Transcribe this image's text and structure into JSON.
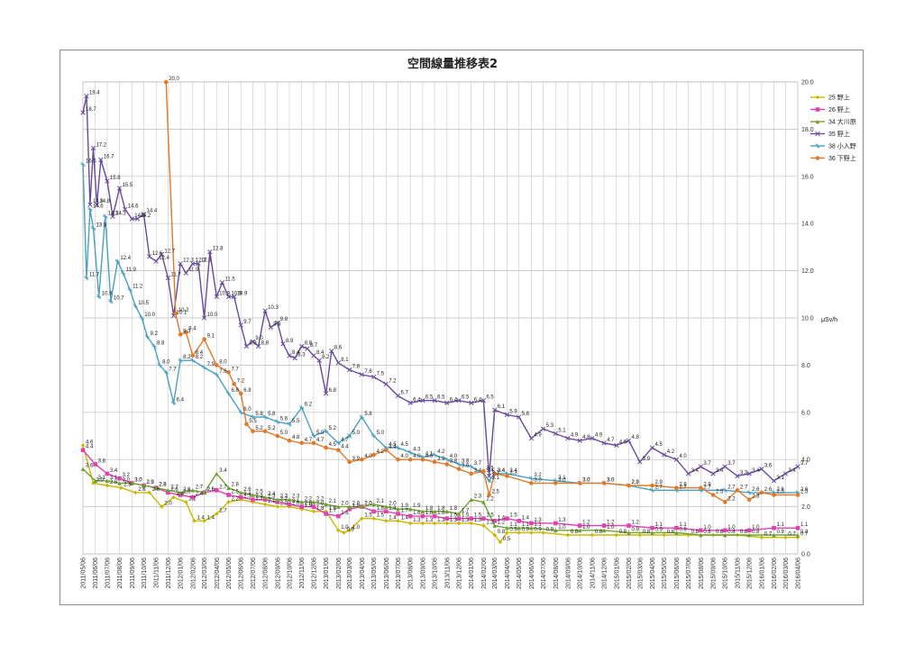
{
  "chart_data": {
    "type": "line",
    "title": "空間線量推移表2",
    "ylabel": "μSv/h",
    "ylim": [
      0,
      20
    ],
    "yticks": [
      "0.0",
      "2.0",
      "4.0",
      "6.0",
      "8.0",
      "10.0",
      "12.0",
      "14.0",
      "16.0",
      "18.0",
      "20.0"
    ],
    "grid": true,
    "legend_position": "right",
    "x_start": "2011-05-06",
    "x_end": "2016-04-06",
    "x_ticks": [
      "2011/05/06",
      "2011/06/06",
      "2011/07/06",
      "2011/08/06",
      "2011/09/06",
      "2011/10/06",
      "2011/11/06",
      "2011/12/06",
      "2012/01/06",
      "2012/02/06",
      "2012/03/06",
      "2012/04/06",
      "2012/05/06",
      "2012/06/06",
      "2012/07/06",
      "2012/08/06",
      "2012/09/06",
      "2012/10/06",
      "2012/11/06",
      "2012/12/06",
      "2013/01/06",
      "2013/02/06",
      "2013/03/06",
      "2013/04/06",
      "2013/05/06",
      "2013/06/06",
      "2013/07/06",
      "2013/08/06",
      "2013/09/06",
      "2013/10/06",
      "2013/11/06",
      "2013/12/06",
      "2014/01/06",
      "2014/02/06",
      "2014/03/06",
      "2014/04/06",
      "2014/05/06",
      "2014/06/06",
      "2014/07/06",
      "2014/08/06",
      "2014/09/06",
      "2014/10/06",
      "2014/11/06",
      "2014/12/06",
      "2015/01/06",
      "2015/02/06",
      "2015/03/06",
      "2015/04/06",
      "2015/05/06",
      "2015/06/06",
      "2015/07/06",
      "2015/08/06",
      "2015/09/06",
      "2015/10/06",
      "2015/11/06",
      "2015/12/06",
      "2016/01/06",
      "2016/02/06",
      "2016/03/06",
      "2016/04/06"
    ],
    "series": [
      {
        "name": "25 野上",
        "color": "#c9b800",
        "marker": "diamond",
        "x": [
          "2011-05-06",
          "2011-06-01",
          "2011-07-06",
          "2011-08-10",
          "2011-09-15",
          "2011-10-20",
          "2011-11-20",
          "2011-12-20",
          "2012-01-20",
          "2012-02-10",
          "2012-03-06",
          "2012-04-06",
          "2012-05-06",
          "2012-06-06",
          "2012-07-06",
          "2012-08-06",
          "2012-09-06",
          "2012-10-06",
          "2012-11-06",
          "2012-12-06",
          "2013-01-06",
          "2013-02-06",
          "2013-02-20",
          "2013-03-06",
          "2013-04-06",
          "2013-05-06",
          "2013-06-06",
          "2013-07-06",
          "2013-08-06",
          "2013-09-06",
          "2013-10-06",
          "2013-11-06",
          "2013-12-06",
          "2014-01-06",
          "2014-02-06",
          "2014-03-06",
          "2014-03-20",
          "2014-04-06",
          "2014-05-06",
          "2014-06-06",
          "2014-07-06",
          "2014-09-06",
          "2014-11-06",
          "2015-01-06",
          "2015-03-06",
          "2015-05-06",
          "2015-07-06",
          "2015-09-06",
          "2015-11-06",
          "2016-01-06",
          "2016-03-06",
          "2016-04-06"
        ],
        "values": [
          4.6,
          3.0,
          2.9,
          2.8,
          2.6,
          2.6,
          2.0,
          2.4,
          2.2,
          1.4,
          1.4,
          1.7,
          2.2,
          2.3,
          2.2,
          2.1,
          2.0,
          2.0,
          1.9,
          1.8,
          1.8,
          1.0,
          0.9,
          1.0,
          1.5,
          1.5,
          1.4,
          1.4,
          1.3,
          1.3,
          1.3,
          1.3,
          1.3,
          1.3,
          1.2,
          0.8,
          0.5,
          0.9,
          0.9,
          0.9,
          0.9,
          0.8,
          0.8,
          0.8,
          0.8,
          0.8,
          0.8,
          0.8,
          0.8,
          0.7,
          0.7,
          0.7
        ]
      },
      {
        "name": "26 野上",
        "color": "#e040b0",
        "marker": "square",
        "x": [
          "2011-05-06",
          "2011-06-06",
          "2011-07-06",
          "2011-08-06",
          "2011-09-06",
          "2011-10-06",
          "2011-11-06",
          "2011-12-06",
          "2012-01-06",
          "2012-02-06",
          "2012-03-06",
          "2012-04-06",
          "2012-05-06",
          "2012-06-06",
          "2012-07-06",
          "2012-08-06",
          "2012-09-06",
          "2012-10-06",
          "2012-11-06",
          "2012-12-06",
          "2013-01-06",
          "2013-02-06",
          "2013-03-06",
          "2013-04-06",
          "2013-05-06",
          "2013-06-06",
          "2013-07-06",
          "2013-08-06",
          "2013-09-06",
          "2013-10-06",
          "2013-11-06",
          "2013-12-06",
          "2014-01-06",
          "2014-02-06",
          "2014-03-06",
          "2014-04-06",
          "2014-05-06",
          "2014-06-06",
          "2014-08-06",
          "2014-10-06",
          "2014-12-06",
          "2015-02-06",
          "2015-04-06",
          "2015-06-06",
          "2015-08-06",
          "2015-10-06",
          "2015-12-06",
          "2016-02-06",
          "2016-04-06"
        ],
        "values": [
          4.4,
          3.8,
          3.4,
          3.2,
          3.0,
          2.9,
          2.8,
          2.6,
          2.5,
          2.4,
          2.6,
          2.7,
          2.5,
          2.4,
          2.3,
          2.3,
          2.2,
          2.1,
          2.0,
          2.0,
          1.7,
          1.6,
          1.9,
          2.0,
          1.8,
          1.8,
          1.7,
          1.6,
          1.6,
          1.6,
          1.5,
          1.5,
          1.5,
          1.5,
          1.4,
          1.5,
          1.4,
          1.3,
          1.3,
          1.2,
          1.2,
          1.2,
          1.1,
          1.1,
          1.0,
          1.0,
          1.0,
          1.1,
          1.1
        ]
      },
      {
        "name": "34 大川原",
        "color": "#70a030",
        "marker": "triangle",
        "x": [
          "2011-05-06",
          "2011-06-06",
          "2011-07-06",
          "2011-08-06",
          "2011-09-06",
          "2011-10-06",
          "2011-11-06",
          "2011-12-06",
          "2012-01-06",
          "2012-02-06",
          "2012-03-06",
          "2012-04-06",
          "2012-05-06",
          "2012-06-06",
          "2012-07-06",
          "2012-08-06",
          "2012-09-06",
          "2012-10-06",
          "2012-11-06",
          "2012-12-06",
          "2013-01-06",
          "2013-02-06",
          "2013-03-06",
          "2013-04-06",
          "2013-05-06",
          "2013-06-06",
          "2013-07-06",
          "2013-08-06",
          "2013-09-06",
          "2013-10-06",
          "2013-11-06",
          "2013-12-06",
          "2014-01-06",
          "2014-02-06",
          "2014-03-06",
          "2014-04-06",
          "2014-05-06",
          "2014-06-06",
          "2014-08-06",
          "2014-10-06",
          "2014-12-06",
          "2015-02-06",
          "2015-04-06",
          "2015-06-06",
          "2015-08-06",
          "2015-10-06",
          "2015-12-06",
          "2016-02-06",
          "2016-04-06"
        ],
        "values": [
          3.6,
          3.1,
          3.1,
          3.0,
          3.0,
          2.9,
          2.8,
          2.7,
          2.6,
          2.7,
          2.6,
          3.4,
          2.8,
          2.6,
          2.5,
          2.4,
          2.3,
          2.3,
          2.2,
          2.2,
          2.1,
          2.0,
          2.0,
          2.0,
          2.1,
          2.0,
          1.9,
          1.9,
          1.8,
          1.8,
          1.8,
          1.7,
          2.3,
          2.2,
          1.2,
          1.1,
          1.1,
          1.1,
          1.0,
          1.0,
          1.0,
          0.9,
          0.9,
          0.9,
          0.8,
          0.8,
          0.8,
          0.8,
          0.8
        ]
      },
      {
        "name": "35 野上",
        "color": "#6a4a9a",
        "marker": "cross",
        "x": [
          "2011-05-06",
          "2011-05-15",
          "2011-05-24",
          "2011-06-01",
          "2011-06-10",
          "2011-06-20",
          "2011-07-06",
          "2011-07-20",
          "2011-08-06",
          "2011-08-20",
          "2011-09-06",
          "2011-09-20",
          "2011-10-06",
          "2011-10-20",
          "2011-11-06",
          "2011-11-20",
          "2011-12-06",
          "2011-12-20",
          "2012-01-06",
          "2012-01-20",
          "2012-02-06",
          "2012-02-20",
          "2012-03-06",
          "2012-03-20",
          "2012-04-06",
          "2012-04-20",
          "2012-05-06",
          "2012-05-20",
          "2012-06-06",
          "2012-06-20",
          "2012-07-06",
          "2012-07-20",
          "2012-08-06",
          "2012-08-20",
          "2012-09-06",
          "2012-09-20",
          "2012-10-06",
          "2012-10-20",
          "2012-11-06",
          "2012-11-20",
          "2012-12-06",
          "2012-12-20",
          "2013-01-06",
          "2013-01-20",
          "2013-02-06",
          "2013-03-06",
          "2013-04-06",
          "2013-05-06",
          "2013-06-06",
          "2013-07-06",
          "2013-08-06",
          "2013-09-06",
          "2013-10-06",
          "2013-11-06",
          "2013-12-06",
          "2014-01-06",
          "2014-02-06",
          "2014-02-20",
          "2014-03-06",
          "2014-04-06",
          "2014-05-06",
          "2014-06-06",
          "2014-07-06",
          "2014-08-06",
          "2014-09-06",
          "2014-10-06",
          "2014-11-06",
          "2014-12-06",
          "2015-01-06",
          "2015-02-06",
          "2015-03-06",
          "2015-04-06",
          "2015-05-06",
          "2015-06-06",
          "2015-07-06",
          "2015-08-06",
          "2015-09-06",
          "2015-10-06",
          "2015-11-06",
          "2015-12-06",
          "2016-01-06",
          "2016-02-06",
          "2016-03-06",
          "2016-04-06"
        ],
        "values": [
          18.7,
          19.4,
          14.8,
          17.2,
          14.8,
          16.7,
          15.8,
          14.3,
          15.5,
          14.6,
          14.2,
          14.2,
          14.4,
          12.6,
          12.4,
          12.7,
          11.7,
          10.1,
          12.3,
          11.9,
          12.3,
          12.3,
          10.0,
          12.8,
          10.9,
          11.5,
          10.9,
          10.9,
          9.7,
          8.8,
          9.0,
          8.8,
          10.3,
          9.6,
          9.8,
          8.9,
          8.4,
          8.3,
          8.8,
          8.7,
          8.4,
          8.2,
          6.8,
          8.6,
          8.1,
          7.8,
          7.6,
          7.5,
          7.2,
          6.7,
          6.4,
          6.5,
          6.5,
          6.4,
          6.5,
          6.4,
          6.5,
          3.3,
          6.1,
          5.9,
          5.8,
          4.9,
          5.3,
          5.1,
          4.9,
          4.8,
          4.9,
          4.7,
          4.6,
          4.8,
          3.9,
          4.5,
          4.2,
          4.0,
          3.4,
          3.7,
          3.4,
          3.7,
          3.3,
          3.4,
          3.6,
          3.1,
          3.4,
          3.7
        ]
      },
      {
        "name": "38 小入野",
        "color": "#4aa0c0",
        "marker": "star",
        "x": [
          "2011-05-06",
          "2011-05-15",
          "2011-05-24",
          "2011-06-01",
          "2011-06-15",
          "2011-07-01",
          "2011-07-15",
          "2011-08-01",
          "2011-08-15",
          "2011-09-01",
          "2011-09-15",
          "2011-10-01",
          "2011-10-15",
          "2011-11-01",
          "2011-11-15",
          "2011-12-01",
          "2011-12-20",
          "2012-01-06",
          "2012-02-06",
          "2012-03-06",
          "2012-04-06",
          "2012-05-06",
          "2012-06-06",
          "2012-07-06",
          "2012-08-06",
          "2012-09-06",
          "2012-10-06",
          "2012-11-06",
          "2012-12-06",
          "2013-01-06",
          "2013-02-06",
          "2013-03-06",
          "2013-04-06",
          "2013-05-06",
          "2013-06-06",
          "2013-07-06",
          "2013-08-06",
          "2013-09-06",
          "2013-10-06",
          "2013-11-06",
          "2013-12-06",
          "2014-01-06",
          "2014-02-06",
          "2014-02-20",
          "2014-03-06",
          "2014-04-06",
          "2014-06-06",
          "2014-08-06",
          "2014-10-06",
          "2014-12-06",
          "2015-02-06",
          "2015-04-06",
          "2015-06-06",
          "2015-08-06",
          "2015-10-06",
          "2015-12-06",
          "2016-02-06",
          "2016-04-06"
        ],
        "values": [
          16.5,
          11.7,
          14.6,
          13.8,
          10.9,
          14.3,
          10.7,
          12.4,
          11.9,
          11.2,
          10.5,
          10.0,
          9.2,
          8.8,
          8.0,
          7.7,
          6.4,
          8.2,
          8.2,
          7.9,
          7.6,
          6.8,
          6.0,
          5.8,
          5.8,
          5.6,
          5.5,
          6.2,
          5.0,
          5.2,
          4.7,
          5.0,
          5.8,
          5.0,
          4.5,
          4.5,
          4.3,
          4.1,
          4.2,
          4.0,
          3.8,
          3.7,
          3.4,
          3.1,
          3.4,
          3.4,
          3.2,
          3.1,
          3.0,
          3.0,
          2.9,
          2.7,
          2.7,
          2.7,
          2.7,
          2.6,
          2.6,
          2.6
        ]
      },
      {
        "name": "36 下野上",
        "color": "#e07a2a",
        "marker": "circle",
        "x": [
          "2011-12-01",
          "2011-12-25",
          "2012-01-06",
          "2012-01-20",
          "2012-02-06",
          "2012-03-06",
          "2012-04-06",
          "2012-05-06",
          "2012-05-20",
          "2012-06-06",
          "2012-06-20",
          "2012-07-06",
          "2012-08-06",
          "2012-09-06",
          "2012-10-06",
          "2012-11-06",
          "2012-12-06",
          "2013-01-06",
          "2013-02-06",
          "2013-03-06",
          "2013-04-06",
          "2013-05-06",
          "2013-06-06",
          "2013-07-06",
          "2013-08-06",
          "2013-09-06",
          "2013-10-06",
          "2013-11-06",
          "2013-12-06",
          "2014-01-06",
          "2014-02-06",
          "2014-02-20",
          "2014-03-06",
          "2014-04-06",
          "2014-06-06",
          "2014-08-06",
          "2014-10-06",
          "2014-12-06",
          "2015-02-06",
          "2015-04-06",
          "2015-06-06",
          "2015-08-06",
          "2015-09-06",
          "2015-10-06",
          "2015-11-06",
          "2015-12-06",
          "2016-01-06",
          "2016-02-06",
          "2016-04-06"
        ],
        "values": [
          20.0,
          10.2,
          9.3,
          9.4,
          8.4,
          9.1,
          8.0,
          7.7,
          7.2,
          6.8,
          5.5,
          5.2,
          5.2,
          5.0,
          4.8,
          4.7,
          4.7,
          4.5,
          4.4,
          3.9,
          4.0,
          4.2,
          4.4,
          4.0,
          4.0,
          4.0,
          3.9,
          3.8,
          3.6,
          3.4,
          3.5,
          2.5,
          3.4,
          3.3,
          3.0,
          3.0,
          3.0,
          3.0,
          2.9,
          2.9,
          2.8,
          2.8,
          2.5,
          2.2,
          2.7,
          2.3,
          2.6,
          2.5,
          2.5
        ]
      }
    ]
  }
}
